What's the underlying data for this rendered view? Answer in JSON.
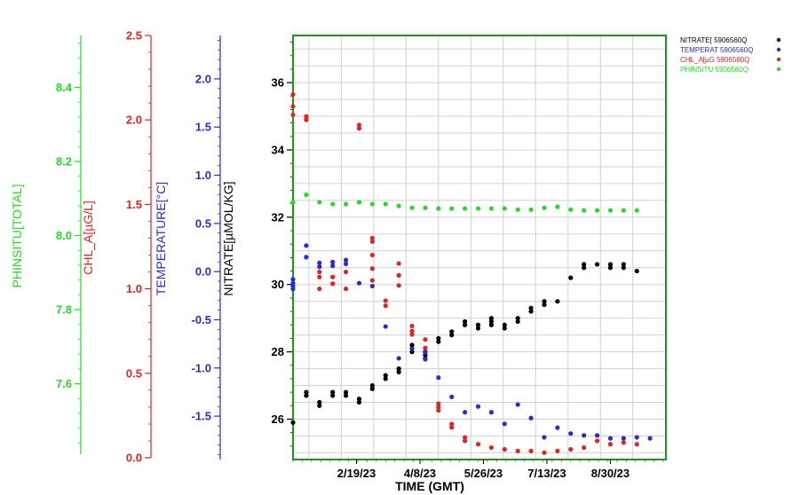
{
  "chart_data": {
    "type": "scatter",
    "xlabel": "TIME (GMT)",
    "x_ticks": [
      "2/19/23",
      "4/8/23",
      "5/26/23",
      "7/13/23",
      "8/30/23"
    ],
    "x_range": [
      "2023-01-02",
      "2023-10-11"
    ],
    "grid": true,
    "legend_position": "top-right",
    "axes": [
      {
        "id": "nitrate",
        "label": "NITRATE[µMOL/KG]",
        "color": "#000000",
        "range": [
          24.8,
          37.4
        ],
        "ticks": [
          26,
          28,
          30,
          32,
          34,
          36
        ]
      },
      {
        "id": "temperature",
        "label": "TEMPERATURE[°C]",
        "color": "#2a2ad8",
        "range": [
          -1.95,
          2.45
        ],
        "ticks": [
          -1.5,
          -1.0,
          -0.5,
          0.0,
          0.5,
          1.0,
          1.5,
          2.0
        ]
      },
      {
        "id": "chl",
        "label": "CHL_A[µG/L]",
        "color": "#e02424",
        "range": [
          0.0,
          2.5
        ],
        "ticks": [
          0.0,
          0.5,
          1.0,
          1.5,
          2.0,
          2.5
        ]
      },
      {
        "id": "ph",
        "label": "PHINSITU[TOTAL]",
        "color": "#22dd22",
        "range": [
          7.41,
          8.54
        ],
        "ticks": [
          7.6,
          7.8,
          8.0,
          8.2,
          8.4
        ]
      }
    ],
    "series": [
      {
        "name": "NITRATE[ 5906560Q",
        "axis": "nitrate",
        "color": "#000000",
        "points": [
          [
            "2023-01-02",
            25.9
          ],
          [
            "2023-01-12",
            26.8
          ],
          [
            "2023-01-12",
            26.7
          ],
          [
            "2023-01-22",
            26.5
          ],
          [
            "2023-01-22",
            26.4
          ],
          [
            "2023-02-01",
            26.8
          ],
          [
            "2023-02-01",
            26.7
          ],
          [
            "2023-02-11",
            26.8
          ],
          [
            "2023-02-11",
            26.7
          ],
          [
            "2023-02-21",
            26.6
          ],
          [
            "2023-02-21",
            26.5
          ],
          [
            "2023-03-03",
            27.0
          ],
          [
            "2023-03-03",
            26.9
          ],
          [
            "2023-03-13",
            27.3
          ],
          [
            "2023-03-13",
            27.2
          ],
          [
            "2023-03-23",
            27.4
          ],
          [
            "2023-03-23",
            27.5
          ],
          [
            "2023-04-02",
            28.1
          ],
          [
            "2023-04-02",
            28.0
          ],
          [
            "2023-04-02",
            28.2
          ],
          [
            "2023-04-12",
            28.0
          ],
          [
            "2023-04-12",
            27.9
          ],
          [
            "2023-04-12",
            27.8
          ],
          [
            "2023-04-22",
            28.4
          ],
          [
            "2023-04-22",
            28.3
          ],
          [
            "2023-05-02",
            28.6
          ],
          [
            "2023-05-02",
            28.5
          ],
          [
            "2023-05-12",
            28.9
          ],
          [
            "2023-05-12",
            28.8
          ],
          [
            "2023-05-22",
            28.8
          ],
          [
            "2023-05-22",
            28.7
          ],
          [
            "2023-06-01",
            29.0
          ],
          [
            "2023-06-01",
            28.9
          ],
          [
            "2023-06-01",
            28.8
          ],
          [
            "2023-06-11",
            28.8
          ],
          [
            "2023-06-11",
            28.7
          ],
          [
            "2023-06-21",
            29.0
          ],
          [
            "2023-06-21",
            28.9
          ],
          [
            "2023-07-01",
            29.3
          ],
          [
            "2023-07-01",
            29.2
          ],
          [
            "2023-07-11",
            29.5
          ],
          [
            "2023-07-11",
            29.4
          ],
          [
            "2023-07-21",
            29.5
          ],
          [
            "2023-07-31",
            30.2
          ],
          [
            "2023-08-10",
            30.6
          ],
          [
            "2023-08-10",
            30.5
          ],
          [
            "2023-08-20",
            30.6
          ],
          [
            "2023-08-30",
            30.6
          ],
          [
            "2023-08-30",
            30.5
          ],
          [
            "2023-09-09",
            30.6
          ],
          [
            "2023-09-09",
            30.5
          ],
          [
            "2023-09-19",
            30.4
          ]
        ]
      },
      {
        "name": "TEMPERAT 5906560Q",
        "axis": "temperature",
        "color": "#2a2ad8",
        "points": [
          [
            "2023-01-02",
            -0.18
          ],
          [
            "2023-01-02",
            -0.12
          ],
          [
            "2023-01-02",
            -0.08
          ],
          [
            "2023-01-02",
            -0.15
          ],
          [
            "2023-01-12",
            0.27
          ],
          [
            "2023-01-12",
            0.15
          ],
          [
            "2023-01-22",
            0.05
          ],
          [
            "2023-01-22",
            0.09
          ],
          [
            "2023-02-01",
            0.1
          ],
          [
            "2023-02-01",
            0.06
          ],
          [
            "2023-02-11",
            0.08
          ],
          [
            "2023-02-11",
            0.12
          ],
          [
            "2023-02-21",
            -0.12
          ],
          [
            "2023-03-03",
            -0.15
          ],
          [
            "2023-03-13",
            -0.57
          ],
          [
            "2023-03-23",
            -0.9
          ],
          [
            "2023-04-02",
            -0.8
          ],
          [
            "2023-04-12",
            -0.84
          ],
          [
            "2023-04-12",
            -0.91
          ],
          [
            "2023-04-22",
            -1.1
          ],
          [
            "2023-05-02",
            -1.3
          ],
          [
            "2023-05-12",
            -1.46
          ],
          [
            "2023-05-22",
            -1.4
          ],
          [
            "2023-06-01",
            -1.46
          ],
          [
            "2023-06-11",
            -1.58
          ],
          [
            "2023-06-21",
            -1.38
          ],
          [
            "2023-07-01",
            -1.52
          ],
          [
            "2023-07-11",
            -1.72
          ],
          [
            "2023-07-21",
            -1.62
          ],
          [
            "2023-07-31",
            -1.68
          ],
          [
            "2023-08-10",
            -1.7
          ],
          [
            "2023-08-20",
            -1.7
          ],
          [
            "2023-08-30",
            -1.73
          ],
          [
            "2023-09-09",
            -1.73
          ],
          [
            "2023-09-19",
            -1.72
          ],
          [
            "2023-09-29",
            -1.73
          ]
        ]
      },
      {
        "name": "CHL_A[µG 5906560Q",
        "axis": "chl",
        "color": "#e02424",
        "points": [
          [
            "2023-01-02",
            2.15
          ],
          [
            "2023-01-02",
            2.08
          ],
          [
            "2023-01-02",
            2.03
          ],
          [
            "2023-01-12",
            2.02
          ],
          [
            "2023-01-12",
            2.0
          ],
          [
            "2023-01-22",
            1.07
          ],
          [
            "2023-01-22",
            1.0
          ],
          [
            "2023-01-22",
            1.1
          ],
          [
            "2023-02-01",
            1.03
          ],
          [
            "2023-02-01",
            1.07
          ],
          [
            "2023-02-11",
            1.1
          ],
          [
            "2023-02-11",
            1.0
          ],
          [
            "2023-02-21",
            1.97
          ],
          [
            "2023-02-21",
            1.95
          ],
          [
            "2023-03-03",
            1.3
          ],
          [
            "2023-03-03",
            1.28
          ],
          [
            "2023-03-03",
            1.2
          ],
          [
            "2023-03-03",
            1.12
          ],
          [
            "2023-03-03",
            1.05
          ],
          [
            "2023-03-13",
            0.93
          ],
          [
            "2023-03-13",
            0.9
          ],
          [
            "2023-03-23",
            1.15
          ],
          [
            "2023-03-23",
            1.08
          ],
          [
            "2023-03-23",
            1.02
          ],
          [
            "2023-04-02",
            0.78
          ],
          [
            "2023-04-02",
            0.75
          ],
          [
            "2023-04-02",
            0.73
          ],
          [
            "2023-04-12",
            0.7
          ],
          [
            "2023-04-12",
            0.65
          ],
          [
            "2023-04-22",
            0.32
          ],
          [
            "2023-04-22",
            0.3
          ],
          [
            "2023-04-22",
            0.28
          ],
          [
            "2023-05-02",
            0.2
          ],
          [
            "2023-05-02",
            0.18
          ],
          [
            "2023-05-12",
            0.12
          ],
          [
            "2023-05-12",
            0.1
          ],
          [
            "2023-05-22",
            0.08
          ],
          [
            "2023-06-01",
            0.06
          ],
          [
            "2023-06-11",
            0.05
          ],
          [
            "2023-06-21",
            0.04
          ],
          [
            "2023-07-01",
            0.04
          ],
          [
            "2023-07-11",
            0.03
          ],
          [
            "2023-07-21",
            0.04
          ],
          [
            "2023-07-31",
            0.05
          ],
          [
            "2023-08-10",
            0.06
          ],
          [
            "2023-08-20",
            0.1
          ],
          [
            "2023-08-30",
            0.08
          ],
          [
            "2023-09-09",
            0.09
          ],
          [
            "2023-09-19",
            0.08
          ]
        ]
      },
      {
        "name": "PHINSITU 5906560Q",
        "axis": "ph",
        "color": "#22dd22",
        "points": [
          [
            "2023-01-02",
            8.09
          ],
          [
            "2023-01-12",
            8.11
          ],
          [
            "2023-01-22",
            8.09
          ],
          [
            "2023-02-01",
            8.085
          ],
          [
            "2023-02-11",
            8.085
          ],
          [
            "2023-02-21",
            8.09
          ],
          [
            "2023-03-03",
            8.085
          ],
          [
            "2023-03-13",
            8.085
          ],
          [
            "2023-03-23",
            8.08
          ],
          [
            "2023-04-02",
            8.075
          ],
          [
            "2023-04-12",
            8.075
          ],
          [
            "2023-04-22",
            8.073
          ],
          [
            "2023-05-02",
            8.073
          ],
          [
            "2023-05-12",
            8.073
          ],
          [
            "2023-05-22",
            8.073
          ],
          [
            "2023-06-01",
            8.073
          ],
          [
            "2023-06-11",
            8.073
          ],
          [
            "2023-06-21",
            8.07
          ],
          [
            "2023-07-01",
            8.07
          ],
          [
            "2023-07-11",
            8.075
          ],
          [
            "2023-07-21",
            8.078
          ],
          [
            "2023-07-31",
            8.07
          ],
          [
            "2023-08-10",
            8.068
          ],
          [
            "2023-08-20",
            8.068
          ],
          [
            "2023-08-30",
            8.068
          ],
          [
            "2023-09-09",
            8.068
          ],
          [
            "2023-09-19",
            8.068
          ]
        ]
      }
    ]
  }
}
